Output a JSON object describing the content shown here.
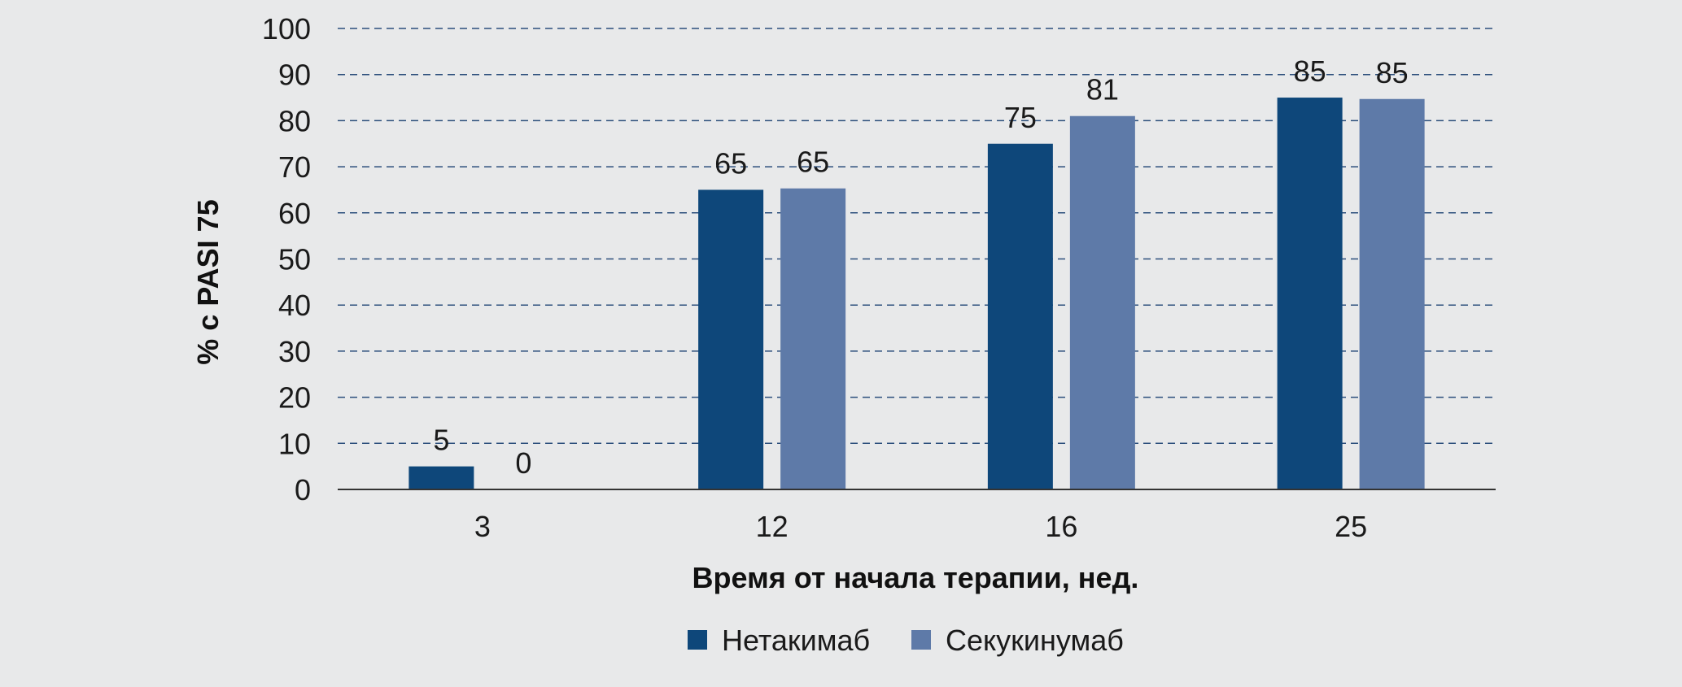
{
  "chart_data": {
    "type": "bar",
    "title": "",
    "xlabel": "Время от начала терапии, нед.",
    "ylabel": "% с PASI 75",
    "ylim": [
      0,
      100
    ],
    "yticks": [
      "0",
      "10",
      "20",
      "30",
      "40",
      "50",
      "60",
      "70",
      "80",
      "90",
      "100"
    ],
    "grid": true,
    "legend_position": "bottom",
    "categories": [
      "3",
      "12",
      "16",
      "25"
    ],
    "series": [
      {
        "name": "Нетакимаб",
        "color": "#0e477a",
        "values": [
          5,
          65,
          75,
          85
        ],
        "labels": [
          "5",
          "65",
          "75",
          "85"
        ]
      },
      {
        "name": "Секукинумаб",
        "color": "#5e7aa8",
        "values": [
          0,
          65.3,
          81,
          84.7
        ],
        "labels": [
          "0",
          "65",
          "81",
          "85"
        ]
      }
    ]
  }
}
